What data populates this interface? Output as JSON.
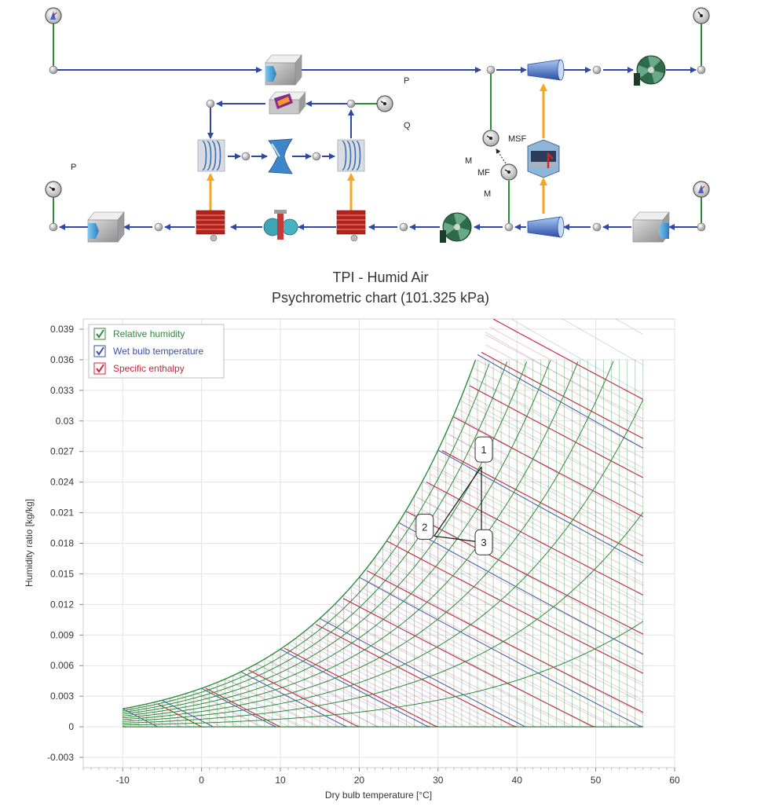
{
  "diagram": {
    "labels": {
      "p_top": "P",
      "q": "Q",
      "p_left": "P",
      "msf": "MSF",
      "m1": "M",
      "mf": "MF",
      "m2": "M"
    }
  },
  "chart_title": {
    "line1": "TPI - Humid Air",
    "line2": "Psychrometric chart (101.325 kPa)"
  },
  "chart_data": {
    "type": "line",
    "xlabel": "Dry bulb temperature [°C]",
    "ylabel": "Humidity ratio [kg/kg]",
    "xlim": [
      -15,
      60
    ],
    "ylim": [
      -0.004,
      0.04
    ],
    "x_ticks": [
      "-10",
      "0",
      "10",
      "20",
      "30",
      "40",
      "50",
      "60"
    ],
    "y_ticks": [
      "0.039",
      "0.036",
      "0.033",
      "0.03",
      "0.027",
      "0.024",
      "0.021",
      "0.018",
      "0.015",
      "0.012",
      "0.009",
      "0.006",
      "0.003",
      "0",
      "-0.003"
    ],
    "grid": true,
    "legend_position": "top-left",
    "pressure_kpa": 101.325,
    "series": [
      {
        "name": "Relative humidity",
        "color": "#2e8b3a",
        "checked": true
      },
      {
        "name": "Wet bulb temperature",
        "color": "#3a4fb0",
        "checked": true
      },
      {
        "name": "Specific enthalpy",
        "color": "#d0203a",
        "checked": true
      }
    ],
    "points": [
      {
        "label": "1",
        "x": 35.5,
        "y": 0.0255
      },
      {
        "label": "2",
        "x": 29.5,
        "y": 0.0187
      },
      {
        "label": "3",
        "x": 35.5,
        "y": 0.0181
      }
    ],
    "segments": [
      [
        "1",
        "2"
      ],
      [
        "2",
        "3"
      ],
      [
        "3",
        "1"
      ]
    ]
  }
}
